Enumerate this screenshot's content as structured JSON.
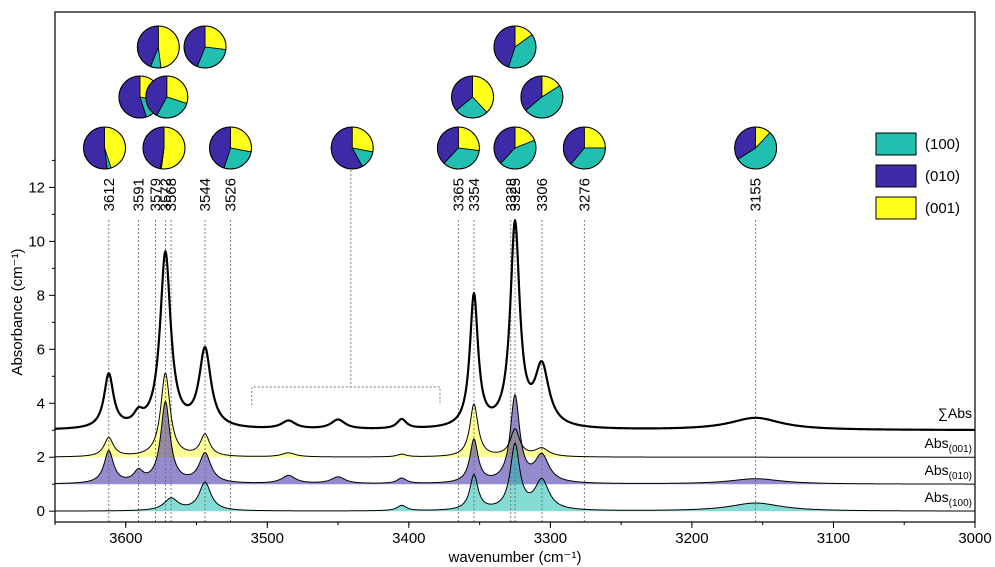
{
  "chart_data": {
    "type": "line",
    "xlabel": "wavenumber (cm⁻¹)",
    "ylabel": "Absorbance (cm⁻¹)",
    "xlim": [
      3650,
      3000
    ],
    "ylim": [
      -0.4,
      18.5
    ],
    "x_ticks": [
      3600,
      3500,
      3400,
      3300,
      3200,
      3100,
      3000
    ],
    "y_ticks": [
      0,
      2,
      4,
      6,
      8,
      10,
      12
    ],
    "colors": {
      "a100": "#20bfb0",
      "a010": "#3d2aa6",
      "a001": "#ffff1a",
      "sum": "#000000",
      "guide": "#707070"
    },
    "legend": [
      {
        "key": "a100",
        "label": "(100)"
      },
      {
        "key": "a010",
        "label": "(010)"
      },
      {
        "key": "a001",
        "label": "(001)"
      }
    ],
    "series": [
      {
        "name": "∑Abs",
        "name_sub": "",
        "key": "sum",
        "baseline": 3.0,
        "peaks": [
          [
            3612,
            2.0,
            4
          ],
          [
            3591,
            0.4,
            4
          ],
          [
            3572,
            6.5,
            4.5
          ],
          [
            3544,
            2.9,
            5
          ],
          [
            3485,
            0.3,
            6
          ],
          [
            3450,
            0.35,
            6
          ],
          [
            3405,
            0.35,
            4
          ],
          [
            3354,
            4.9,
            3.5
          ],
          [
            3325,
            7.5,
            4
          ],
          [
            3306,
            2.2,
            6
          ],
          [
            3155,
            0.45,
            22
          ]
        ]
      },
      {
        "name": "Abs",
        "name_sub": "(001)",
        "key": "a001",
        "baseline": 2.0,
        "peaks": [
          [
            3612,
            0.7,
            4
          ],
          [
            3572,
            3.1,
            4
          ],
          [
            3544,
            0.8,
            4
          ],
          [
            3485,
            0.15,
            6
          ],
          [
            3405,
            0.1,
            4
          ],
          [
            3354,
            1.95,
            3.5
          ],
          [
            3325,
            1.0,
            4
          ],
          [
            3306,
            0.3,
            6
          ]
        ]
      },
      {
        "name": "Abs",
        "name_sub": "(010)",
        "key": "a010",
        "baseline": 1.0,
        "peaks": [
          [
            3612,
            1.2,
            4
          ],
          [
            3591,
            0.4,
            4
          ],
          [
            3572,
            3.0,
            4
          ],
          [
            3544,
            1.1,
            5
          ],
          [
            3485,
            0.3,
            6
          ],
          [
            3450,
            0.25,
            6
          ],
          [
            3405,
            0.2,
            4
          ],
          [
            3354,
            1.6,
            3.5
          ],
          [
            3325,
            3.2,
            4
          ],
          [
            3306,
            1.0,
            6
          ],
          [
            3155,
            0.2,
            22
          ]
        ]
      },
      {
        "name": "Abs",
        "name_sub": "(100)",
        "key": "a100",
        "baseline": 0.0,
        "peaks": [
          [
            3568,
            0.45,
            6
          ],
          [
            3544,
            1.05,
            5
          ],
          [
            3405,
            0.2,
            4
          ],
          [
            3354,
            1.3,
            3.5
          ],
          [
            3325,
            2.4,
            4
          ],
          [
            3306,
            1.1,
            6
          ],
          [
            3155,
            0.3,
            22
          ]
        ]
      }
    ],
    "peak_lines": [
      {
        "label": "3612",
        "x": 3612
      },
      {
        "label": "3591",
        "x": 3591
      },
      {
        "label": "3579",
        "x": 3579
      },
      {
        "label": "3572",
        "x": 3572
      },
      {
        "label": "3568",
        "x": 3568
      },
      {
        "label": "3544",
        "x": 3544
      },
      {
        "label": "3526",
        "x": 3526
      },
      {
        "label": "3365",
        "x": 3365
      },
      {
        "label": "3354",
        "x": 3354
      },
      {
        "label": "3328",
        "x": 3328
      },
      {
        "label": "3325",
        "x": 3325
      },
      {
        "label": "3306",
        "x": 3306
      },
      {
        "label": "3276",
        "x": 3276
      },
      {
        "label": "3155",
        "x": 3155
      }
    ],
    "bracket": {
      "from": 3511,
      "to": 3378,
      "center": 3441
    },
    "pies": [
      {
        "x": 3615,
        "tier": 1,
        "a100": 0.03,
        "a010": 0.52,
        "a001": 0.45
      },
      {
        "x": 3577,
        "tier": 3,
        "a100": 0.08,
        "a010": 0.44,
        "a001": 0.48
      },
      {
        "x": 3590,
        "tier": 2,
        "a100": 0.17,
        "a010": 0.55,
        "a001": 0.28
      },
      {
        "x": 3573,
        "tier": 1,
        "a100": 0.01,
        "a010": 0.47,
        "a001": 0.52
      },
      {
        "x": 3571,
        "tier": 2,
        "a100": 0.28,
        "a010": 0.42,
        "a001": 0.3
      },
      {
        "x": 3544,
        "tier": 3,
        "a100": 0.29,
        "a010": 0.44,
        "a001": 0.27
      },
      {
        "x": 3526,
        "tier": 1,
        "a100": 0.27,
        "a010": 0.45,
        "a001": 0.28
      },
      {
        "x": 3440,
        "tier": 1,
        "a100": 0.14,
        "a010": 0.58,
        "a001": 0.28
      },
      {
        "x": 3365,
        "tier": 1,
        "a100": 0.35,
        "a010": 0.38,
        "a001": 0.27
      },
      {
        "x": 3355,
        "tier": 2,
        "a100": 0.26,
        "a010": 0.36,
        "a001": 0.38
      },
      {
        "x": 3325,
        "tier": 3,
        "a100": 0.4,
        "a010": 0.45,
        "a001": 0.15
      },
      {
        "x": 3325,
        "tier": 1,
        "a100": 0.43,
        "a010": 0.38,
        "a001": 0.19
      },
      {
        "x": 3306,
        "tier": 2,
        "a100": 0.48,
        "a010": 0.36,
        "a001": 0.16
      },
      {
        "x": 3276,
        "tier": 1,
        "a100": 0.36,
        "a010": 0.39,
        "a001": 0.25
      },
      {
        "x": 3155,
        "tier": 1,
        "a100": 0.54,
        "a010": 0.34,
        "a001": 0.12
      }
    ]
  }
}
